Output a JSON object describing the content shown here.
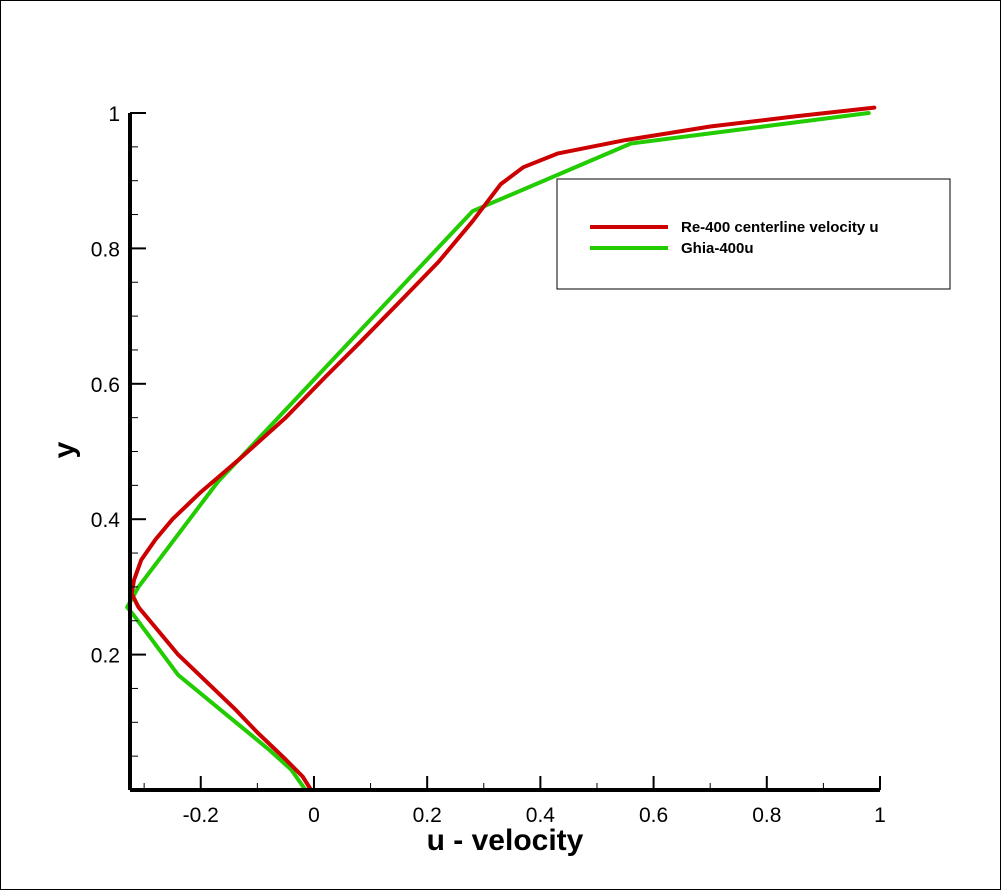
{
  "chart_data": {
    "type": "line",
    "xlabel": "u - velocity",
    "ylabel": "y",
    "xlim": [
      -0.325,
      1.0
    ],
    "ylim": [
      0.0,
      1.0
    ],
    "x_ticks": [
      {
        "value": -0.2,
        "label": "-0.2"
      },
      {
        "value": 0,
        "label": "0"
      },
      {
        "value": 0.2,
        "label": "0.2"
      },
      {
        "value": 0.4,
        "label": "0.4"
      },
      {
        "value": 0.6,
        "label": "0.6"
      },
      {
        "value": 0.8,
        "label": "0.8"
      },
      {
        "value": 1.0,
        "label": "1"
      }
    ],
    "y_ticks": [
      {
        "value": 0.2,
        "label": "0.2"
      },
      {
        "value": 0.4,
        "label": "0.4"
      },
      {
        "value": 0.6,
        "label": "0.6"
      },
      {
        "value": 0.8,
        "label": "0.8"
      },
      {
        "value": 1.0,
        "label": "1"
      }
    ],
    "legend_position": "top-right",
    "grid": false,
    "series": [
      {
        "name": "Re-400 centerline velocity u",
        "color": "#cc0000",
        "points": [
          [
            -0.005,
            0.0
          ],
          [
            -0.02,
            0.02
          ],
          [
            -0.05,
            0.045
          ],
          [
            -0.1,
            0.085
          ],
          [
            -0.14,
            0.12
          ],
          [
            -0.19,
            0.16
          ],
          [
            -0.24,
            0.2
          ],
          [
            -0.28,
            0.24
          ],
          [
            -0.31,
            0.27
          ],
          [
            -0.322,
            0.29
          ],
          [
            -0.318,
            0.31
          ],
          [
            -0.305,
            0.34
          ],
          [
            -0.28,
            0.37
          ],
          [
            -0.25,
            0.4
          ],
          [
            -0.2,
            0.44
          ],
          [
            -0.13,
            0.49
          ],
          [
            -0.05,
            0.55
          ],
          [
            0.02,
            0.61
          ],
          [
            0.08,
            0.66
          ],
          [
            0.15,
            0.72
          ],
          [
            0.22,
            0.78
          ],
          [
            0.28,
            0.84
          ],
          [
            0.33,
            0.895
          ],
          [
            0.37,
            0.92
          ],
          [
            0.43,
            0.94
          ],
          [
            0.55,
            0.96
          ],
          [
            0.7,
            0.98
          ],
          [
            0.85,
            0.995
          ],
          [
            0.99,
            1.008
          ]
        ]
      },
      {
        "name": "Ghia-400u",
        "color": "#22cc00",
        "points": [
          [
            -0.015,
            0.0
          ],
          [
            -0.04,
            0.03
          ],
          [
            -0.08,
            0.06
          ],
          [
            -0.24,
            0.17
          ],
          [
            -0.32,
            0.26
          ],
          [
            -0.33,
            0.27
          ],
          [
            -0.31,
            0.3
          ],
          [
            -0.17,
            0.455
          ],
          [
            0.28,
            0.855
          ],
          [
            0.56,
            0.955
          ],
          [
            0.98,
            1.0
          ]
        ]
      }
    ]
  }
}
